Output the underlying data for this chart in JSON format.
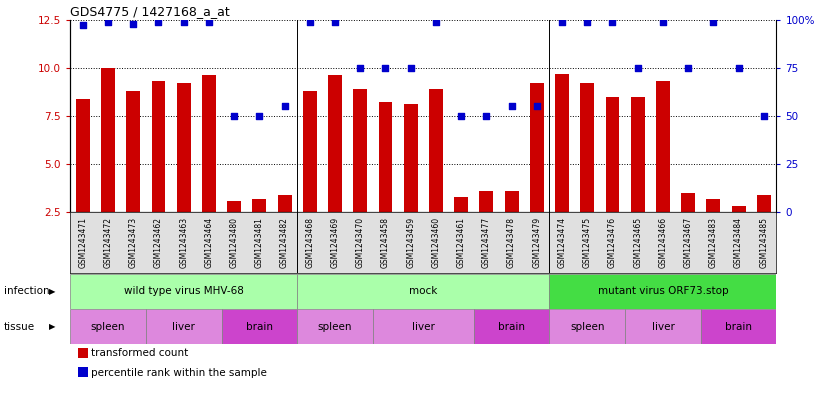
{
  "title": "GDS4775 / 1427168_a_at",
  "samples": [
    "GSM1243471",
    "GSM1243472",
    "GSM1243473",
    "GSM1243462",
    "GSM1243463",
    "GSM1243464",
    "GSM1243480",
    "GSM1243481",
    "GSM1243482",
    "GSM1243468",
    "GSM1243469",
    "GSM1243470",
    "GSM1243458",
    "GSM1243459",
    "GSM1243460",
    "GSM1243461",
    "GSM1243477",
    "GSM1243478",
    "GSM1243479",
    "GSM1243474",
    "GSM1243475",
    "GSM1243476",
    "GSM1243465",
    "GSM1243466",
    "GSM1243467",
    "GSM1243483",
    "GSM1243484",
    "GSM1243485"
  ],
  "bar_values": [
    8.4,
    10.0,
    8.8,
    9.3,
    9.2,
    9.6,
    3.1,
    3.2,
    3.4,
    8.8,
    9.6,
    8.9,
    8.2,
    8.1,
    8.9,
    3.3,
    3.6,
    3.6,
    9.2,
    9.7,
    9.2,
    8.5,
    8.5,
    9.3,
    3.5,
    3.2,
    2.8,
    3.4
  ],
  "percentile_values": [
    97,
    99,
    98,
    99,
    99,
    99,
    50,
    50,
    55,
    99,
    99,
    75,
    75,
    75,
    99,
    50,
    50,
    55,
    55,
    99,
    99,
    99,
    75,
    99,
    75,
    99,
    75,
    50
  ],
  "bar_color": "#cc0000",
  "percentile_color": "#0000cc",
  "ylim_left": [
    2.5,
    12.5
  ],
  "ylim_right": [
    0,
    100
  ],
  "yticks_left": [
    2.5,
    5.0,
    7.5,
    10.0,
    12.5
  ],
  "yticks_right": [
    0,
    25,
    50,
    75,
    100
  ],
  "infection_groups": [
    {
      "label": "wild type virus MHV-68",
      "start": 0,
      "end": 9,
      "color": "#aaffaa"
    },
    {
      "label": "mock",
      "start": 9,
      "end": 19,
      "color": "#aaffaa"
    },
    {
      "label": "mutant virus ORF73.stop",
      "start": 19,
      "end": 28,
      "color": "#44dd44"
    }
  ],
  "tissue_groups": [
    {
      "label": "spleen",
      "start": 0,
      "end": 3,
      "color": "#dd88dd"
    },
    {
      "label": "liver",
      "start": 3,
      "end": 6,
      "color": "#dd88dd"
    },
    {
      "label": "brain",
      "start": 6,
      "end": 9,
      "color": "#cc44cc"
    },
    {
      "label": "spleen",
      "start": 9,
      "end": 12,
      "color": "#dd88dd"
    },
    {
      "label": "liver",
      "start": 12,
      "end": 16,
      "color": "#dd88dd"
    },
    {
      "label": "brain",
      "start": 16,
      "end": 19,
      "color": "#cc44cc"
    },
    {
      "label": "spleen",
      "start": 19,
      "end": 22,
      "color": "#dd88dd"
    },
    {
      "label": "liver",
      "start": 22,
      "end": 25,
      "color": "#dd88dd"
    },
    {
      "label": "brain",
      "start": 25,
      "end": 28,
      "color": "#cc44cc"
    }
  ],
  "infection_label": "infection",
  "tissue_label": "tissue",
  "legend_bar": "transformed count",
  "legend_pct": "percentile rank within the sample",
  "bg_color": "#ffffff",
  "tick_area_color": "#e0e0e0"
}
